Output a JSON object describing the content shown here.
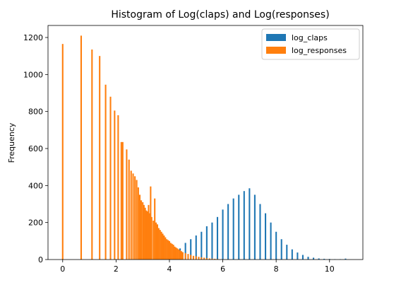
{
  "chart_data": {
    "type": "bar",
    "title": "Histogram of Log(claps) and Log(responses)",
    "xlabel": "",
    "ylabel": "Frequency",
    "xlim": [
      -0.55,
      11.25
    ],
    "ylim": [
      0,
      1265
    ],
    "x_ticks": [
      0,
      2,
      4,
      6,
      8,
      10
    ],
    "y_ticks": [
      0,
      200,
      400,
      600,
      800,
      1000,
      1200
    ],
    "grid": false,
    "legend_position": "top-right",
    "series": [
      {
        "name": "log_claps",
        "color": "#1f77b4",
        "bin_width": 0.055,
        "bins": [
          {
            "x": 4.0,
            "count": 10
          },
          {
            "x": 4.2,
            "count": 30
          },
          {
            "x": 4.4,
            "count": 60
          },
          {
            "x": 4.6,
            "count": 90
          },
          {
            "x": 4.8,
            "count": 110
          },
          {
            "x": 5.0,
            "count": 130
          },
          {
            "x": 5.2,
            "count": 150
          },
          {
            "x": 5.4,
            "count": 180
          },
          {
            "x": 5.6,
            "count": 200
          },
          {
            "x": 5.8,
            "count": 230
          },
          {
            "x": 6.0,
            "count": 270
          },
          {
            "x": 6.2,
            "count": 300
          },
          {
            "x": 6.4,
            "count": 330
          },
          {
            "x": 6.6,
            "count": 350
          },
          {
            "x": 6.8,
            "count": 370
          },
          {
            "x": 7.0,
            "count": 385
          },
          {
            "x": 7.2,
            "count": 350
          },
          {
            "x": 7.4,
            "count": 300
          },
          {
            "x": 7.6,
            "count": 250
          },
          {
            "x": 7.8,
            "count": 200
          },
          {
            "x": 8.0,
            "count": 150
          },
          {
            "x": 8.2,
            "count": 110
          },
          {
            "x": 8.4,
            "count": 80
          },
          {
            "x": 8.6,
            "count": 55
          },
          {
            "x": 8.8,
            "count": 38
          },
          {
            "x": 9.0,
            "count": 25
          },
          {
            "x": 9.2,
            "count": 15
          },
          {
            "x": 9.4,
            "count": 10
          },
          {
            "x": 9.6,
            "count": 6
          },
          {
            "x": 9.8,
            "count": 4
          },
          {
            "x": 10.0,
            "count": 3
          },
          {
            "x": 10.2,
            "count": 2
          },
          {
            "x": 10.4,
            "count": 2
          },
          {
            "x": 10.6,
            "count": 5
          }
        ]
      },
      {
        "name": "log_responses",
        "color": "#ff7f0e",
        "bin_width": 0.055,
        "bins": [
          {
            "x": 0.0,
            "count": 1165
          },
          {
            "x": 0.693,
            "count": 1210
          },
          {
            "x": 1.099,
            "count": 1135
          },
          {
            "x": 1.386,
            "count": 1100
          },
          {
            "x": 1.609,
            "count": 945
          },
          {
            "x": 1.792,
            "count": 880
          },
          {
            "x": 1.946,
            "count": 805
          },
          {
            "x": 2.079,
            "count": 780
          },
          {
            "x": 2.197,
            "count": 635
          },
          {
            "x": 2.25,
            "count": 635
          },
          {
            "x": 2.398,
            "count": 595
          },
          {
            "x": 2.485,
            "count": 540
          },
          {
            "x": 2.565,
            "count": 480
          },
          {
            "x": 2.639,
            "count": 465
          },
          {
            "x": 2.708,
            "count": 450
          },
          {
            "x": 2.773,
            "count": 430
          },
          {
            "x": 2.833,
            "count": 390
          },
          {
            "x": 2.89,
            "count": 350
          },
          {
            "x": 2.944,
            "count": 320
          },
          {
            "x": 3.0,
            "count": 310
          },
          {
            "x": 3.045,
            "count": 295
          },
          {
            "x": 3.091,
            "count": 280
          },
          {
            "x": 3.135,
            "count": 265
          },
          {
            "x": 3.178,
            "count": 260
          },
          {
            "x": 3.219,
            "count": 295
          },
          {
            "x": 3.258,
            "count": 250
          },
          {
            "x": 3.296,
            "count": 395
          },
          {
            "x": 3.333,
            "count": 230
          },
          {
            "x": 3.4,
            "count": 210
          },
          {
            "x": 3.45,
            "count": 330
          },
          {
            "x": 3.5,
            "count": 200
          },
          {
            "x": 3.55,
            "count": 190
          },
          {
            "x": 3.6,
            "count": 170
          },
          {
            "x": 3.65,
            "count": 160
          },
          {
            "x": 3.7,
            "count": 150
          },
          {
            "x": 3.75,
            "count": 140
          },
          {
            "x": 3.8,
            "count": 130
          },
          {
            "x": 3.85,
            "count": 120
          },
          {
            "x": 3.9,
            "count": 110
          },
          {
            "x": 3.95,
            "count": 105
          },
          {
            "x": 4.0,
            "count": 100
          },
          {
            "x": 4.05,
            "count": 90
          },
          {
            "x": 4.1,
            "count": 85
          },
          {
            "x": 4.15,
            "count": 80
          },
          {
            "x": 4.2,
            "count": 70
          },
          {
            "x": 4.25,
            "count": 65
          },
          {
            "x": 4.3,
            "count": 60
          },
          {
            "x": 4.35,
            "count": 55
          },
          {
            "x": 4.4,
            "count": 50
          },
          {
            "x": 4.45,
            "count": 45
          },
          {
            "x": 4.5,
            "count": 40
          },
          {
            "x": 4.6,
            "count": 35
          },
          {
            "x": 4.7,
            "count": 30
          },
          {
            "x": 4.8,
            "count": 25
          },
          {
            "x": 4.9,
            "count": 20
          },
          {
            "x": 5.0,
            "count": 18
          },
          {
            "x": 5.1,
            "count": 15
          },
          {
            "x": 5.2,
            "count": 12
          },
          {
            "x": 5.3,
            "count": 10
          },
          {
            "x": 5.4,
            "count": 8
          },
          {
            "x": 5.5,
            "count": 6
          },
          {
            "x": 5.6,
            "count": 5
          },
          {
            "x": 5.7,
            "count": 4
          },
          {
            "x": 5.8,
            "count": 3
          },
          {
            "x": 6.0,
            "count": 2
          },
          {
            "x": 6.2,
            "count": 1
          }
        ]
      }
    ]
  }
}
